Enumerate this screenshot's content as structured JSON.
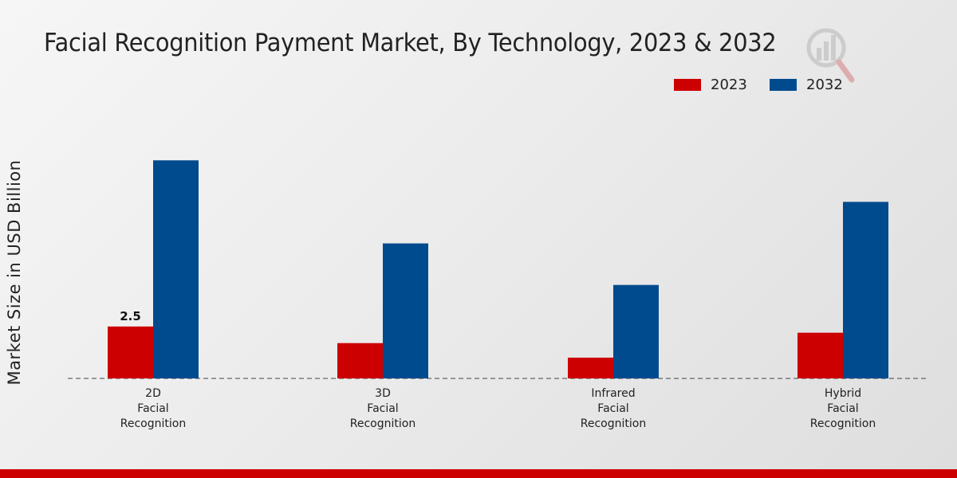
{
  "chart_data": {
    "type": "bar",
    "title": "Facial Recognition Payment Market, By Technology, 2023 & 2032",
    "xlabel": "",
    "ylabel": "Market Size in USD Billion",
    "categories": [
      [
        "2D",
        "Facial",
        "Recognition"
      ],
      [
        "3D",
        "Facial",
        "Recognition"
      ],
      [
        "Infrared",
        "Facial",
        "Recognition"
      ],
      [
        "Hybrid",
        "Facial",
        "Recognition"
      ]
    ],
    "series": [
      {
        "name": "2023",
        "color": "#cc0000",
        "values": [
          2.5,
          1.7,
          1.0,
          2.2
        ]
      },
      {
        "name": "2032",
        "color": "#004b8d",
        "values": [
          10.5,
          6.5,
          4.5,
          8.5
        ]
      }
    ],
    "data_labels": [
      {
        "series": 0,
        "index": 0,
        "text": "2.5"
      }
    ],
    "ylim": [
      0,
      14
    ],
    "legend_position": "top-right",
    "grid": false
  }
}
